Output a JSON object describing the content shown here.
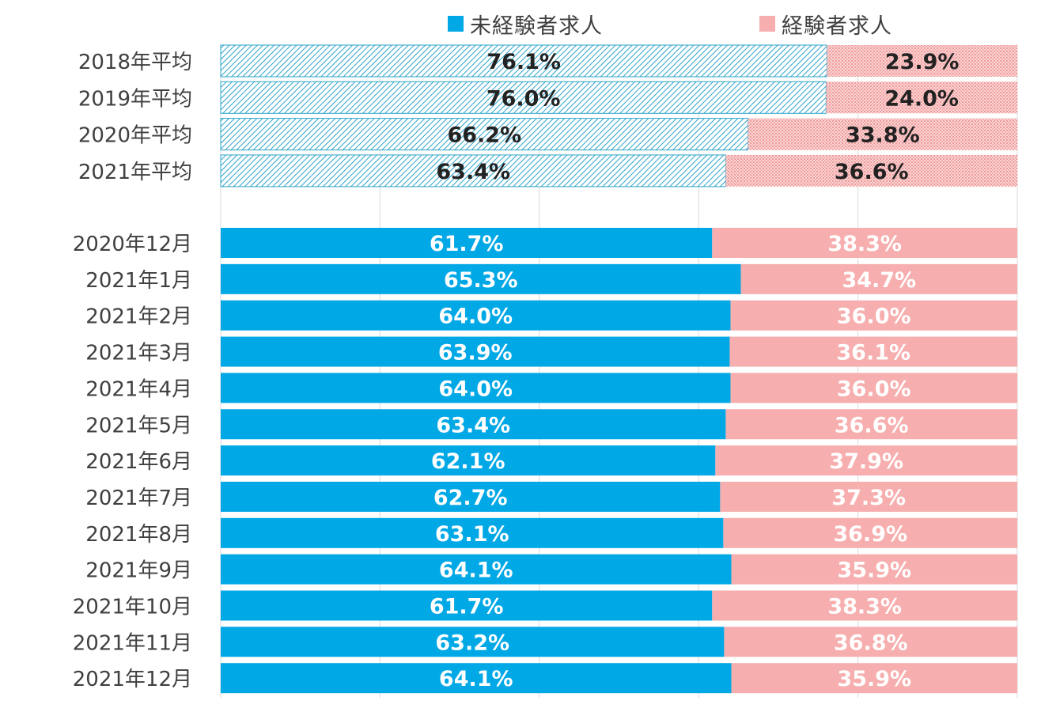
{
  "chart_data": {
    "type": "bar",
    "orientation": "horizontal",
    "stacked": "percent",
    "title": "",
    "xlim": [
      0,
      100
    ],
    "grid": true,
    "legend_position": "top",
    "series": [
      {
        "name": "未経験者求人",
        "color": "#00A8E6"
      },
      {
        "name": "経験者求人",
        "color": "#F7AEAE"
      }
    ],
    "groups": [
      {
        "style": "hatched",
        "rows": [
          {
            "label": "2018年平均",
            "values": [
              76.1,
              23.9
            ],
            "value_labels": [
              "76.1%",
              "23.9%"
            ]
          },
          {
            "label": "2019年平均",
            "values": [
              76.0,
              24.0
            ],
            "value_labels": [
              "76.0%",
              "24.0%"
            ]
          },
          {
            "label": "2020年平均",
            "values": [
              66.2,
              33.8
            ],
            "value_labels": [
              "66.2%",
              "33.8%"
            ]
          },
          {
            "label": "2021年平均",
            "values": [
              63.4,
              36.6
            ],
            "value_labels": [
              "63.4%",
              "36.6%"
            ]
          }
        ]
      },
      {
        "style": "solid",
        "rows": [
          {
            "label": "2020年12月",
            "values": [
              61.7,
              38.3
            ],
            "value_labels": [
              "61.7%",
              "38.3%"
            ]
          },
          {
            "label": "2021年1月",
            "values": [
              65.3,
              34.7
            ],
            "value_labels": [
              "65.3%",
              "34.7%"
            ]
          },
          {
            "label": "2021年2月",
            "values": [
              64.0,
              36.0
            ],
            "value_labels": [
              "64.0%",
              "36.0%"
            ]
          },
          {
            "label": "2021年3月",
            "values": [
              63.9,
              36.1
            ],
            "value_labels": [
              "63.9%",
              "36.1%"
            ]
          },
          {
            "label": "2021年4月",
            "values": [
              64.0,
              36.0
            ],
            "value_labels": [
              "64.0%",
              "36.0%"
            ]
          },
          {
            "label": "2021年5月",
            "values": [
              63.4,
              36.6
            ],
            "value_labels": [
              "63.4%",
              "36.6%"
            ]
          },
          {
            "label": "2021年6月",
            "values": [
              62.1,
              37.9
            ],
            "value_labels": [
              "62.1%",
              "37.9%"
            ]
          },
          {
            "label": "2021年7月",
            "values": [
              62.7,
              37.3
            ],
            "value_labels": [
              "62.7%",
              "37.3%"
            ]
          },
          {
            "label": "2021年8月",
            "values": [
              63.1,
              36.9
            ],
            "value_labels": [
              "63.1%",
              "36.9%"
            ]
          },
          {
            "label": "2021年9月",
            "values": [
              64.1,
              35.9
            ],
            "value_labels": [
              "64.1%",
              "35.9%"
            ]
          },
          {
            "label": "2021年10月",
            "values": [
              61.7,
              38.3
            ],
            "value_labels": [
              "61.7%",
              "38.3%"
            ]
          },
          {
            "label": "2021年11月",
            "values": [
              63.2,
              36.8
            ],
            "value_labels": [
              "63.2%",
              "36.8%"
            ]
          },
          {
            "label": "2021年12月",
            "values": [
              64.1,
              35.9
            ],
            "value_labels": [
              "64.1%",
              "35.9%"
            ]
          }
        ]
      }
    ]
  }
}
